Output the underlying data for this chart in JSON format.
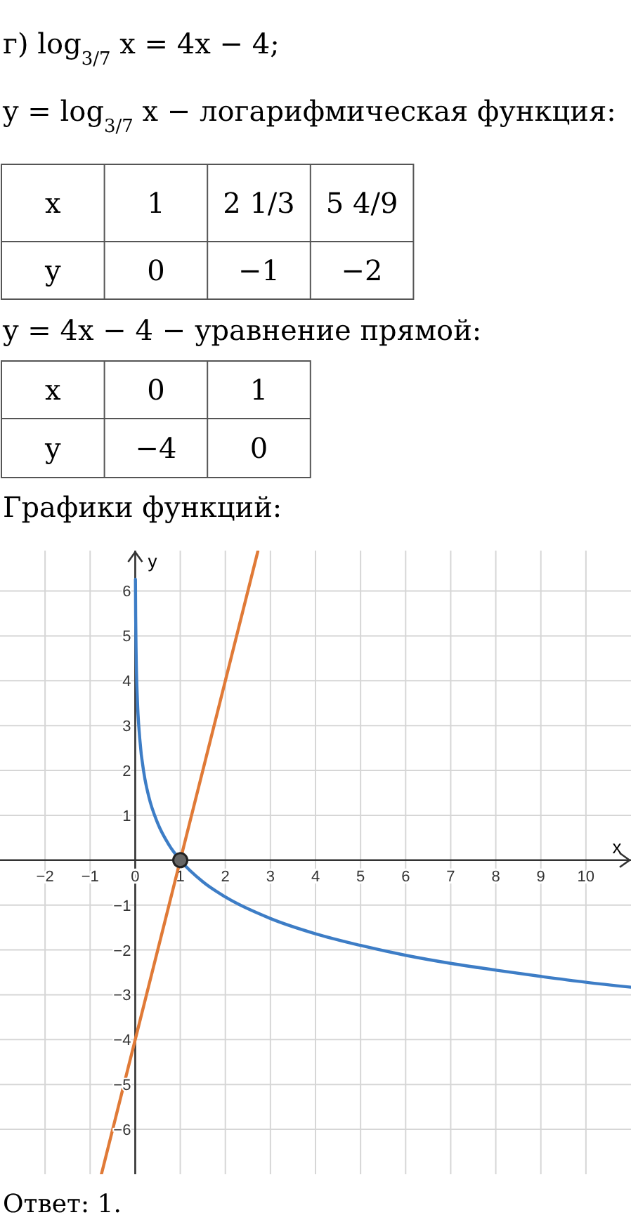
{
  "chart_data": {
    "type": "line",
    "title": "г) log$_{3/7}$ x = 4x − 4;",
    "xlabel": "x",
    "ylabel": "y",
    "annotations": [
      "y = log$_{3/7}$ x − логарифмическая функция:",
      "x",
      "1",
      "2 1/3",
      "5 4/9",
      "y",
      "0",
      "−1",
      "−2",
      "y = 4x − 4 − уравнение прямой:",
      "x",
      "0",
      "1",
      "y",
      "−4",
      "0",
      "Графики функций:",
      "Ответ: 1."
    ],
    "xlim": [
      -3,
      11
    ],
    "ylim": [
      -7,
      6.9
    ],
    "xticks": [
      -2,
      -1,
      0,
      1,
      2,
      3,
      4,
      5,
      6,
      7,
      8,
      9,
      10
    ],
    "yticks": [
      -6,
      -5,
      -4,
      -3,
      -2,
      -1,
      1,
      2,
      3,
      4,
      5,
      6
    ],
    "grid": true,
    "series": [
      {
        "type": "line",
        "color": "#3d7dc6",
        "x": [
          0.005,
          0.01,
          0.02,
          0.05,
          0.1,
          0.2,
          0.3,
          0.5,
          0.75,
          1,
          1.5,
          2,
          3,
          4,
          5,
          6,
          7,
          8,
          9,
          10,
          11
        ],
        "values": [
          6.26,
          5.44,
          4.62,
          3.54,
          2.72,
          1.9,
          1.42,
          0.82,
          0.34,
          0,
          -0.48,
          -0.82,
          -1.3,
          -1.64,
          -1.9,
          -2.12,
          -2.3,
          -2.45,
          -2.59,
          -2.72,
          -2.83
        ]
      },
      {
        "type": "line",
        "color": "#e07a37",
        "x": [
          -0.75,
          2.72
        ],
        "values": [
          -7,
          6.88
        ]
      },
      {
        "type": "scatter",
        "color": "#666666",
        "x": [
          1
        ],
        "values": [
          0
        ]
      }
    ]
  }
}
